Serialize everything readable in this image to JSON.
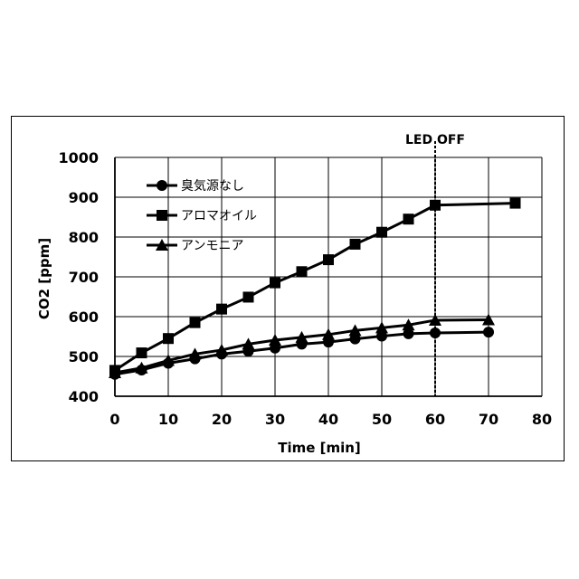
{
  "chart_data": {
    "type": "line",
    "title": "",
    "xlabel": "Time [min]",
    "ylabel": "CO2 [ppm]",
    "xlim": [
      0,
      80
    ],
    "ylim": [
      400,
      1000
    ],
    "xticks": [
      "0",
      "10",
      "20",
      "30",
      "40",
      "50",
      "60",
      "70",
      "80"
    ],
    "yticks": [
      "400",
      "500",
      "600",
      "700",
      "800",
      "900",
      "1000"
    ],
    "grid": true,
    "legend_position": "top-left",
    "annotation": {
      "label": "LED OFF",
      "x": 60
    },
    "series": [
      {
        "name": "臭気源なし",
        "marker": "circle",
        "x": [
          0,
          5,
          10,
          15,
          20,
          25,
          30,
          35,
          40,
          45,
          50,
          55,
          60,
          70
        ],
        "y": [
          455,
          466,
          483,
          494,
          506,
          513,
          521,
          531,
          536,
          544,
          551,
          557,
          559,
          561
        ]
      },
      {
        "name": "アロマオイル",
        "marker": "square",
        "x": [
          0,
          5,
          10,
          15,
          20,
          25,
          30,
          35,
          40,
          45,
          50,
          55,
          60,
          75
        ],
        "y": [
          465,
          509,
          545,
          585,
          619,
          649,
          685,
          713,
          743,
          782,
          812,
          845,
          880,
          885
        ]
      },
      {
        "name": "アンモニア",
        "marker": "triangle",
        "x": [
          0,
          5,
          10,
          15,
          20,
          25,
          30,
          35,
          40,
          45,
          50,
          55,
          60,
          70
        ],
        "y": [
          459,
          471,
          490,
          506,
          516,
          531,
          541,
          548,
          555,
          565,
          572,
          579,
          591,
          592
        ]
      }
    ]
  }
}
